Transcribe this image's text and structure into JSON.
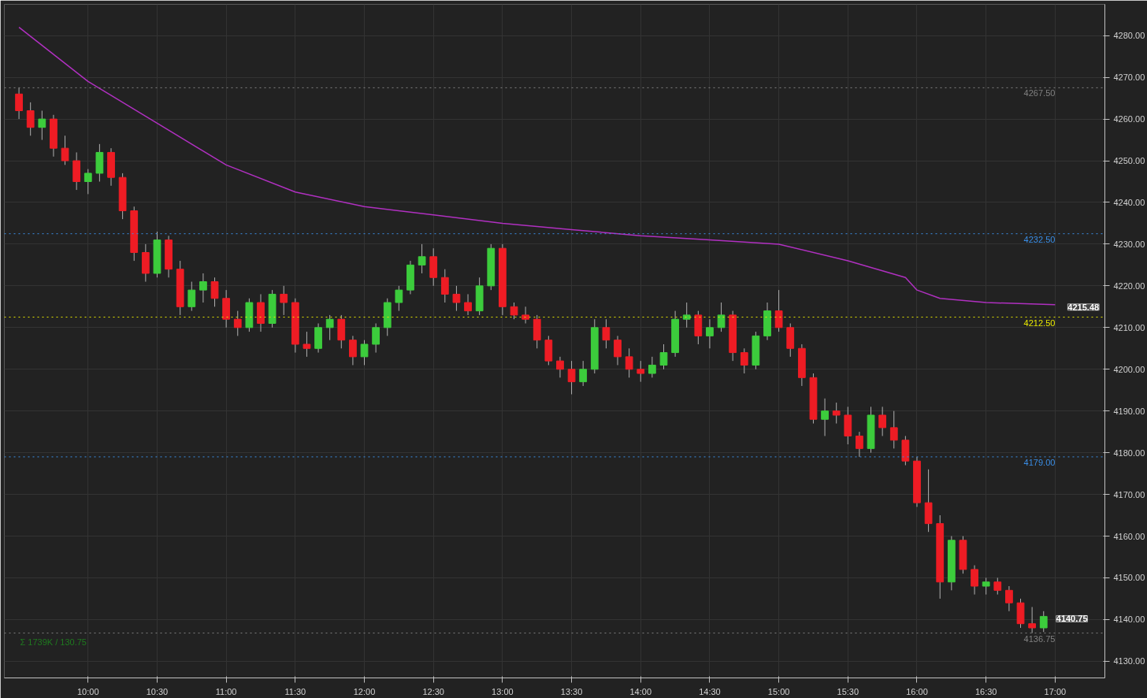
{
  "chart_data": {
    "type": "candlestick",
    "x": [
      9.5,
      9.5833,
      9.6667,
      9.75,
      9.8333,
      9.9167,
      10.0,
      10.0833,
      10.1667,
      10.25,
      10.3333,
      10.4167,
      10.5,
      10.5833,
      10.6667,
      10.75,
      10.8333,
      10.9167,
      11.0,
      11.0833,
      11.1667,
      11.25,
      11.3333,
      11.4167,
      11.5,
      11.5833,
      11.6667,
      11.75,
      11.8333,
      11.9167,
      12.0,
      12.0833,
      12.1667,
      12.25,
      12.3333,
      12.4167,
      12.5,
      12.5833,
      12.6667,
      12.75,
      12.8333,
      12.9167,
      13.0,
      13.0833,
      13.1667,
      13.25,
      13.3333,
      13.4167,
      13.5,
      13.5833,
      13.6667,
      13.75,
      13.8333,
      13.9167,
      14.0,
      14.0833,
      14.1667,
      14.25,
      14.3333,
      14.4167,
      14.5,
      14.5833,
      14.6667,
      14.75,
      14.8333,
      14.9167,
      15.0,
      15.0833,
      15.1667,
      15.25,
      15.3333,
      15.4167,
      15.5,
      15.5833,
      15.6667,
      15.75,
      15.8333,
      15.9167,
      16.0,
      16.0833,
      16.1667,
      16.25,
      16.3333,
      16.4167,
      16.5,
      16.5833,
      16.6667,
      16.75,
      16.8333,
      16.9167
    ],
    "ohlc": [
      [
        4266,
        4267.5,
        4260,
        4262
      ],
      [
        4262,
        4264,
        4256,
        4258
      ],
      [
        4258,
        4262,
        4255,
        4260
      ],
      [
        4260,
        4261,
        4251,
        4253
      ],
      [
        4253,
        4256,
        4249,
        4250
      ],
      [
        4250,
        4252,
        4243,
        4245
      ],
      [
        4245,
        4248,
        4242,
        4247
      ],
      [
        4247,
        4254,
        4245,
        4252
      ],
      [
        4252,
        4253,
        4244,
        4246
      ],
      [
        4246,
        4247,
        4236,
        4238
      ],
      [
        4238,
        4239,
        4226,
        4228
      ],
      [
        4228,
        4230,
        4221,
        4223
      ],
      [
        4223,
        4233,
        4222,
        4231
      ],
      [
        4231,
        4232,
        4222,
        4224
      ],
      [
        4224,
        4226,
        4213,
        4215
      ],
      [
        4215,
        4221,
        4214,
        4219
      ],
      [
        4219,
        4223,
        4216,
        4221
      ],
      [
        4221,
        4222,
        4215,
        4217
      ],
      [
        4217,
        4219,
        4210,
        4212
      ],
      [
        4212,
        4214,
        4208,
        4210
      ],
      [
        4210,
        4217,
        4209,
        4216
      ],
      [
        4216,
        4218,
        4209,
        4211
      ],
      [
        4211,
        4219,
        4210,
        4218
      ],
      [
        4218,
        4220,
        4213,
        4216
      ],
      [
        4216,
        4217,
        4204,
        4206
      ],
      [
        4206,
        4209,
        4203,
        4205
      ],
      [
        4205,
        4211,
        4204,
        4210
      ],
      [
        4210,
        4213,
        4207,
        4212
      ],
      [
        4212,
        4213,
        4205,
        4207
      ],
      [
        4207,
        4208,
        4201,
        4203
      ],
      [
        4203,
        4207,
        4201,
        4206
      ],
      [
        4206,
        4211,
        4204,
        4210
      ],
      [
        4210,
        4217,
        4208,
        4216
      ],
      [
        4216,
        4220,
        4214,
        4219
      ],
      [
        4219,
        4226,
        4218,
        4225
      ],
      [
        4225,
        4230,
        4223,
        4227
      ],
      [
        4227,
        4229,
        4220,
        4222
      ],
      [
        4222,
        4224,
        4216,
        4218
      ],
      [
        4218,
        4220,
        4214,
        4216
      ],
      [
        4216,
        4218,
        4213,
        4214
      ],
      [
        4214,
        4222,
        4213,
        4220
      ],
      [
        4220,
        4230,
        4219,
        4229
      ],
      [
        4229,
        4230,
        4213,
        4215
      ],
      [
        4215,
        4216,
        4212,
        4213
      ],
      [
        4213,
        4215,
        4211,
        4212
      ],
      [
        4212,
        4213,
        4205,
        4207
      ],
      [
        4207,
        4208,
        4201,
        4202
      ],
      [
        4202,
        4203,
        4198,
        4200
      ],
      [
        4200,
        4202,
        4194,
        4197
      ],
      [
        4197,
        4202,
        4196,
        4200
      ],
      [
        4200,
        4212,
        4199,
        4210
      ],
      [
        4210,
        4212,
        4205,
        4207
      ],
      [
        4207,
        4208,
        4201,
        4203
      ],
      [
        4203,
        4205,
        4198,
        4200
      ],
      [
        4200,
        4202,
        4197,
        4199
      ],
      [
        4199,
        4203,
        4198,
        4201
      ],
      [
        4201,
        4206,
        4200,
        4204
      ],
      [
        4204,
        4214,
        4203,
        4212
      ],
      [
        4212,
        4216,
        4210,
        4213
      ],
      [
        4213,
        4214,
        4206,
        4208
      ],
      [
        4208,
        4212,
        4205,
        4210
      ],
      [
        4210,
        4216,
        4209,
        4213
      ],
      [
        4213,
        4214,
        4202,
        4204
      ],
      [
        4204,
        4205,
        4199,
        4201
      ],
      [
        4201,
        4209,
        4200,
        4208
      ],
      [
        4208,
        4216,
        4207,
        4214
      ],
      [
        4214,
        4219,
        4209,
        4210
      ],
      [
        4210,
        4211,
        4203,
        4205
      ],
      [
        4205,
        4206,
        4196,
        4198
      ],
      [
        4198,
        4199,
        4187,
        4188
      ],
      [
        4188,
        4193,
        4184,
        4190
      ],
      [
        4190,
        4192,
        4187,
        4189
      ],
      [
        4189,
        4191,
        4182,
        4184
      ],
      [
        4184,
        4185,
        4179,
        4181
      ],
      [
        4181,
        4191,
        4180,
        4189
      ],
      [
        4189,
        4191,
        4184,
        4186
      ],
      [
        4186,
        4190,
        4181,
        4183
      ],
      [
        4183,
        4184,
        4177,
        4178
      ],
      [
        4178,
        4179,
        4167,
        4168
      ],
      [
        4168,
        4176,
        4161,
        4163
      ],
      [
        4163,
        4165,
        4145,
        4149
      ],
      [
        4149,
        4160,
        4147,
        4159
      ],
      [
        4159,
        4160,
        4151,
        4152
      ],
      [
        4152,
        4153,
        4146,
        4148
      ],
      [
        4148,
        4150,
        4146,
        4149
      ],
      [
        4149,
        4150,
        4146,
        4147
      ],
      [
        4147,
        4148,
        4142,
        4144
      ],
      [
        4144,
        4145,
        4138,
        4139
      ],
      [
        4139,
        4143,
        4136.75,
        4138
      ],
      [
        4138,
        4142,
        4137,
        4140.75
      ]
    ],
    "series": [
      {
        "type": "line",
        "color": "#b030c0",
        "x": [
          9.5,
          10.0,
          10.5,
          11.0,
          11.5,
          12.0,
          12.5,
          13.0,
          13.5,
          14.0,
          14.5,
          15.0,
          15.5,
          15.9167,
          16.0,
          16.1667,
          16.5,
          17.0
        ],
        "values": [
          4282,
          4269,
          4259,
          4249,
          4242.5,
          4239,
          4237,
          4235,
          4233.5,
          4232,
          4231,
          4230,
          4226,
          4222,
          4219,
          4217,
          4216,
          4215.5
        ]
      }
    ],
    "xlim": [
      9.394,
      17.36
    ],
    "xticks": [
      {
        "value": 10,
        "label": "10:00"
      },
      {
        "value": 10.5,
        "label": "10:30"
      },
      {
        "value": 11,
        "label": "11:00"
      },
      {
        "value": 11.5,
        "label": "11:30"
      },
      {
        "value": 12,
        "label": "12:00"
      },
      {
        "value": 12.5,
        "label": "12:30"
      },
      {
        "value": 13,
        "label": "13:00"
      },
      {
        "value": 13.5,
        "label": "13:30"
      },
      {
        "value": 14,
        "label": "14:00"
      },
      {
        "value": 14.5,
        "label": "14:30"
      },
      {
        "value": 15,
        "label": "15:00"
      },
      {
        "value": 15.5,
        "label": "15:30"
      },
      {
        "value": 16,
        "label": "16:00"
      },
      {
        "value": 16.5,
        "label": "16:30"
      },
      {
        "value": 17,
        "label": "17:00"
      }
    ],
    "ylim": [
      4126,
      4287.5
    ],
    "yticks": [
      {
        "value": 4130,
        "label": "4130.00"
      },
      {
        "value": 4140,
        "label": "4140.00"
      },
      {
        "value": 4150,
        "label": "4150.00"
      },
      {
        "value": 4160,
        "label": "4160.00"
      },
      {
        "value": 4170,
        "label": "4170.00"
      },
      {
        "value": 4180,
        "label": "4180.00"
      },
      {
        "value": 4190,
        "label": "4190.00"
      },
      {
        "value": 4200,
        "label": "4200.00"
      },
      {
        "value": 4210,
        "label": "4210.00"
      },
      {
        "value": 4220,
        "label": "4220.00"
      },
      {
        "value": 4230,
        "label": "4230.00"
      },
      {
        "value": 4240,
        "label": "4240.00"
      },
      {
        "value": 4250,
        "label": "4250.00"
      },
      {
        "value": 4260,
        "label": "4260.00"
      },
      {
        "value": 4270,
        "label": "4270.00"
      },
      {
        "value": 4280,
        "label": "4280.00"
      }
    ],
    "ref_lines": [
      {
        "axis": "y",
        "value": 4267.5,
        "label": "4267.50",
        "color": "#808080",
        "line_style": "dotted"
      },
      {
        "axis": "y",
        "value": 4232.5,
        "label": "4232.50",
        "color": "#3a8ee6",
        "line_style": "dotted"
      },
      {
        "axis": "y",
        "value": 4212.5,
        "label": "4212.50",
        "color": "#e8e800",
        "line_style": "dotted"
      },
      {
        "axis": "y",
        "value": 4179,
        "label": "4179.00",
        "color": "#3a8ee6",
        "line_style": "dotted"
      },
      {
        "axis": "y",
        "value": 4136.75,
        "label": "4136.75",
        "color": "#808080",
        "line_style": "dotted"
      }
    ],
    "annotations": [
      "Σ 1739K / 130.75",
      {
        "text": "4215.48",
        "x": 17.0,
        "y": 4215.48
      },
      {
        "text": "4140.75",
        "x": 16.9167,
        "y": 4140.75
      }
    ],
    "grid": true
  }
}
